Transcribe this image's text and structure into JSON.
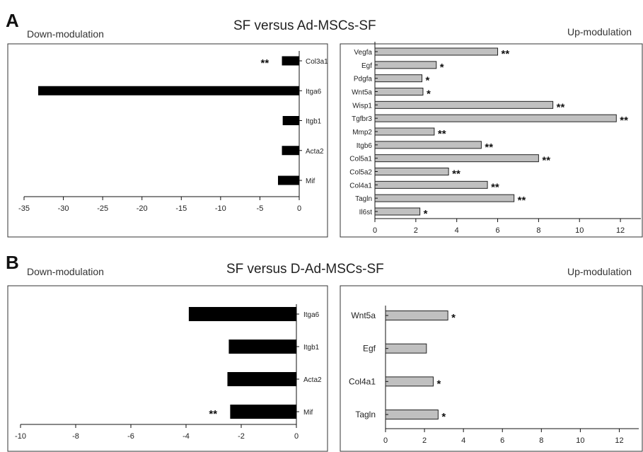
{
  "figure": {
    "colors": {
      "down_bar": "#000000",
      "up_bar": "#c0c0c0",
      "up_bar_stroke": "#222222"
    }
  },
  "panels": [
    {
      "letter": "A",
      "title": "SF versus Ad-MSCs-SF",
      "down_label": "Down-modulation",
      "up_label": "Up-modulation"
    },
    {
      "letter": "B",
      "title": "SF versus D-Ad-MSCs-SF",
      "down_label": "Down-modulation",
      "up_label": "Up-modulation"
    }
  ],
  "chart_data": [
    {
      "panel": "A",
      "side": "down",
      "type": "bar",
      "orientation": "horizontal",
      "categories": [
        "Col3a1",
        "Itga6",
        "Itgb1",
        "Acta2",
        "Mif"
      ],
      "values": [
        -2.2,
        -33.2,
        -2.1,
        -2.2,
        -2.7
      ],
      "significance": [
        "**",
        "",
        "",
        "",
        ""
      ],
      "xlim": [
        -35,
        0
      ],
      "xticks": [
        "-35",
        "-30",
        "-25",
        "-20",
        "-15",
        "-10",
        "-5",
        "0"
      ],
      "tick_values": [
        -35,
        -30,
        -25,
        -20,
        -15,
        -10,
        -5,
        0
      ],
      "bar_color": "#000000"
    },
    {
      "panel": "A",
      "side": "up",
      "type": "bar",
      "orientation": "horizontal",
      "categories": [
        "Vegfa",
        "Egf",
        "Pdgfa",
        "Wnt5a",
        "Wisp1",
        "Tgfbr3",
        "Mmp2",
        "Itgb6",
        "Col5a1",
        "Col5a2",
        "Col4a1",
        "Tagln",
        "Il6st"
      ],
      "values": [
        6.0,
        3.0,
        2.3,
        2.35,
        8.7,
        11.8,
        2.9,
        5.2,
        8.0,
        3.6,
        5.5,
        6.8,
        2.2
      ],
      "significance": [
        "**",
        "*",
        "*",
        "*",
        "**",
        "**",
        "**",
        "**",
        "**",
        "**",
        "**",
        "**",
        "*"
      ],
      "xlim": [
        0,
        13
      ],
      "xticks": [
        "0",
        "2",
        "4",
        "6",
        "8",
        "10",
        "12"
      ],
      "tick_values": [
        0,
        2,
        4,
        6,
        8,
        10,
        12
      ],
      "bar_color": "#c0c0c0"
    },
    {
      "panel": "B",
      "side": "down",
      "type": "bar",
      "orientation": "horizontal",
      "categories": [
        "Itga6",
        "Itgb1",
        "Acta2",
        "Mif"
      ],
      "values": [
        -3.9,
        -2.45,
        -2.5,
        -2.4
      ],
      "significance": [
        "",
        "",
        "",
        "**"
      ],
      "xlim": [
        -10,
        0
      ],
      "xticks": [
        "-10",
        "-8",
        "-6",
        "-4",
        "-2",
        "0"
      ],
      "tick_values": [
        -10,
        -8,
        -6,
        -4,
        -2,
        0
      ],
      "bar_color": "#000000"
    },
    {
      "panel": "B",
      "side": "up",
      "type": "bar",
      "orientation": "horizontal",
      "categories": [
        "Wnt5a",
        "Egf",
        "Col4a1",
        "Tagln"
      ],
      "values": [
        3.2,
        2.1,
        2.45,
        2.7
      ],
      "significance": [
        "*",
        "",
        "*",
        "*"
      ],
      "xlim": [
        0,
        13
      ],
      "xticks": [
        "0",
        "2",
        "4",
        "6",
        "8",
        "10",
        "12"
      ],
      "tick_values": [
        0,
        2,
        4,
        6,
        8,
        10,
        12
      ],
      "bar_color": "#c0c0c0"
    }
  ]
}
